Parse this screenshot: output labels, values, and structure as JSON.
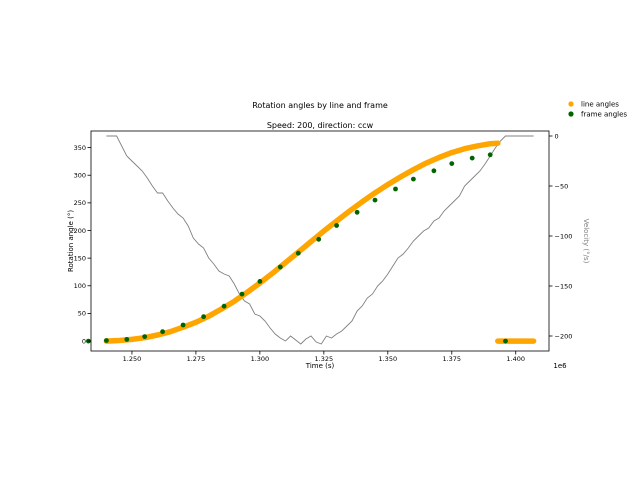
{
  "chart_data": {
    "type": "scatter",
    "title": "Rotation angles by line and frame",
    "subtitle": "Speed: 200, direction: ccw",
    "xlabel": "Time (s)",
    "ylabel": "Rotation angle (°)",
    "y2label": "Velocity (°/s)",
    "x_offset_label": "1e6",
    "xlim": [
      1234000,
      1413000
    ],
    "ylim": [
      -18,
      380
    ],
    "y2lim": [
      -215,
      5
    ],
    "x_ticks": [
      1250000,
      1275000,
      1300000,
      1325000,
      1350000,
      1375000,
      1400000
    ],
    "x_tick_labels": [
      "1.250",
      "1.275",
      "1.300",
      "1.325",
      "1.350",
      "1.375",
      "1.400"
    ],
    "y_ticks": [
      0,
      50,
      100,
      150,
      200,
      250,
      300,
      350
    ],
    "y_tick_labels": [
      "0",
      "50",
      "100",
      "150",
      "200",
      "250",
      "300",
      "350"
    ],
    "y2_ticks": [
      0,
      -50,
      -100,
      -150,
      -200
    ],
    "y2_tick_labels": [
      "0",
      "−50",
      "−100",
      "−150",
      "−200"
    ],
    "grid": false,
    "legend": "upper-right-outside",
    "colors": {
      "line_angles": "#FFA500",
      "frame_angles": "#006400",
      "velocity": "#808080"
    },
    "series": [
      {
        "name": "line angles",
        "kind": "thick-line",
        "segments": [
          {
            "x": [
              1240000,
              1245000,
              1250000,
              1255000,
              1260000,
              1265000,
              1270000,
              1275000,
              1280000,
              1285000,
              1290000,
              1295000,
              1300000,
              1305000,
              1310000,
              1315000,
              1320000,
              1325000,
              1330000,
              1335000,
              1340000,
              1345000,
              1350000,
              1355000,
              1360000,
              1365000,
              1370000,
              1375000,
              1380000,
              1385000,
              1390000,
              1393000
            ],
            "y": [
              0,
              1,
              3,
              6,
              11,
              17,
              25,
              34,
              45,
              58,
              72,
              88,
              105,
              123,
              142,
              161,
              180,
              199,
              217,
              235,
              252,
              268,
              283,
              297,
              310,
              322,
              332,
              341,
              348,
              353,
              357,
              358
            ]
          },
          {
            "x": [
              1393000,
              1407000
            ],
            "y": [
              0,
              0
            ]
          }
        ]
      },
      {
        "name": "frame angles",
        "kind": "points",
        "x": [
          1233000,
          1240000,
          1248000,
          1255000,
          1262000,
          1270000,
          1278000,
          1286000,
          1293000,
          1300000,
          1308000,
          1315000,
          1323000,
          1330000,
          1338000,
          1345000,
          1353000,
          1360000,
          1368000,
          1375000,
          1383000,
          1390000,
          1396000
        ],
        "y": [
          0,
          1,
          3,
          8,
          17,
          29,
          44,
          63,
          85,
          108,
          134,
          159,
          184,
          209,
          233,
          255,
          275,
          293,
          308,
          321,
          331,
          337,
          0
        ]
      },
      {
        "name": "velocity",
        "kind": "line",
        "axis": "y2",
        "x": [
          1240000,
          1244000,
          1246000,
          1248000,
          1250000,
          1252000,
          1254000,
          1256000,
          1258000,
          1260000,
          1262000,
          1264000,
          1266000,
          1268000,
          1270000,
          1272000,
          1274000,
          1276000,
          1278000,
          1280000,
          1282000,
          1284000,
          1286000,
          1288000,
          1290000,
          1292000,
          1294000,
          1296000,
          1298000,
          1300000,
          1302000,
          1304000,
          1306000,
          1308000,
          1310000,
          1312000,
          1314000,
          1316000,
          1318000,
          1320000,
          1322000,
          1324000,
          1326000,
          1328000,
          1330000,
          1332000,
          1334000,
          1336000,
          1338000,
          1340000,
          1342000,
          1344000,
          1346000,
          1348000,
          1350000,
          1352000,
          1354000,
          1356000,
          1358000,
          1360000,
          1362000,
          1364000,
          1366000,
          1368000,
          1370000,
          1372000,
          1374000,
          1376000,
          1378000,
          1380000,
          1382000,
          1384000,
          1386000,
          1388000,
          1390000,
          1392000,
          1394000,
          1396000,
          1400000,
          1402000,
          1404000,
          1407000
        ],
        "y": [
          0,
          0,
          -10,
          -20,
          -25,
          -30,
          -35,
          -42,
          -50,
          -57,
          -57,
          -65,
          -72,
          -78,
          -82,
          -90,
          -102,
          -108,
          -112,
          -122,
          -128,
          -135,
          -138,
          -140,
          -148,
          -158,
          -165,
          -168,
          -178,
          -180,
          -185,
          -192,
          -198,
          -202,
          -205,
          -200,
          -204,
          -208,
          -203,
          -200,
          -206,
          -208,
          -200,
          -202,
          -198,
          -195,
          -190,
          -185,
          -175,
          -170,
          -162,
          -158,
          -150,
          -145,
          -138,
          -130,
          -122,
          -118,
          -112,
          -105,
          -100,
          -95,
          -92,
          -85,
          -82,
          -75,
          -70,
          -65,
          -60,
          -50,
          -45,
          -40,
          -35,
          -28,
          -20,
          -12,
          -5,
          0,
          0,
          0,
          0,
          0
        ]
      }
    ]
  }
}
